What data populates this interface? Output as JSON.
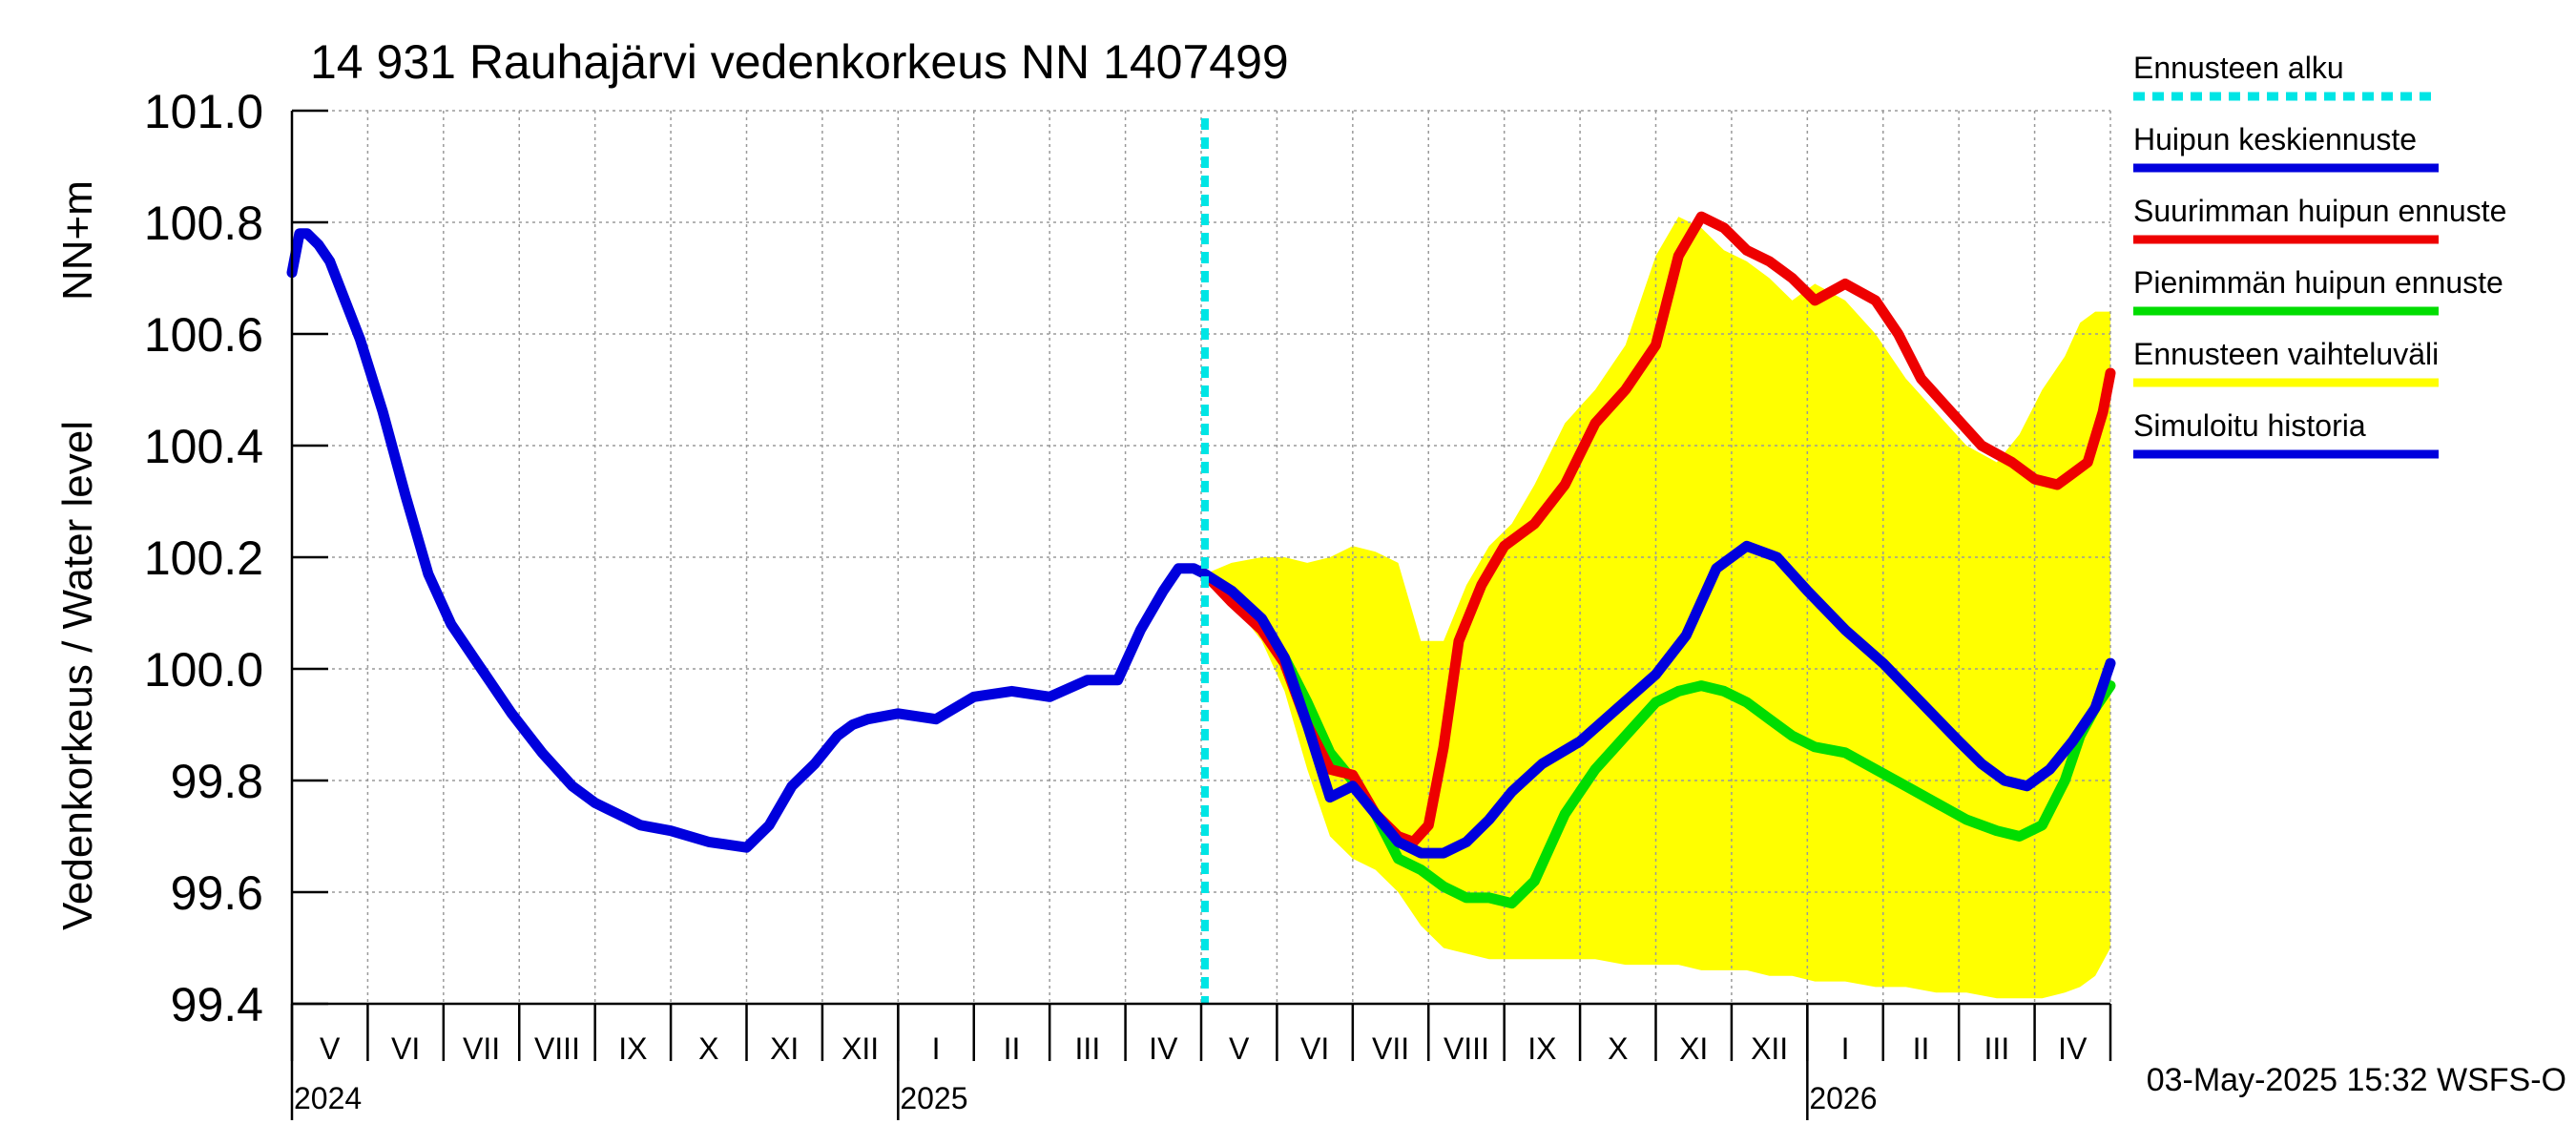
{
  "chart_data": {
    "type": "line",
    "title": "14 931 Rauhajärvi vedenkorkeus NN 1407499",
    "ylabel": "Vedenkorkeus / Water level",
    "yunit": "NN+m",
    "ylim": [
      99.4,
      101.0
    ],
    "ytick_values": [
      99.4,
      99.6,
      99.8,
      100.0,
      100.2,
      100.4,
      100.6,
      100.8,
      101.0
    ],
    "ytick_labels": [
      "99.4",
      "99.6",
      "99.8",
      "100.0",
      "100.2",
      "100.4",
      "100.6",
      "100.8",
      "101.0"
    ],
    "xlim_month_index": [
      0,
      24
    ],
    "month_labels": [
      "V",
      "VI",
      "VII",
      "VIII",
      "IX",
      "X",
      "XI",
      "XII",
      "I",
      "II",
      "III",
      "IV",
      "V",
      "VI",
      "VII",
      "VIII",
      "IX",
      "X",
      "XI",
      "XII",
      "I",
      "II",
      "III",
      "IV"
    ],
    "year_labels": [
      {
        "label": "2024",
        "month_index": 0
      },
      {
        "label": "2025",
        "month_index": 8
      },
      {
        "label": "2026",
        "month_index": 20
      }
    ],
    "forecast_start_month_index": 12.05,
    "footer": "03-May-2025 15:32 WSFS-O",
    "legend": [
      {
        "label": "Ennusteen alku",
        "color": "#00e5e5",
        "style": "dashed"
      },
      {
        "label": "Huipun keskiennuste",
        "color": "#0000dd",
        "style": "solid"
      },
      {
        "label": "Suurimman huipun ennuste",
        "color": "#ee0000",
        "style": "solid"
      },
      {
        "label": "Pienimmän huipun ennuste",
        "color": "#00dd00",
        "style": "solid"
      },
      {
        "label": "Ennusteen vaihteluväli",
        "color": "#ffff00",
        "style": "solid"
      },
      {
        "label": "Simuloitu historia",
        "color": "#0000dd",
        "style": "solid"
      }
    ],
    "series": [
      {
        "name": "Simuloitu historia",
        "color": "#0000dd",
        "x": [
          0,
          0.1,
          0.2,
          0.35,
          0.5,
          0.7,
          0.9,
          1.2,
          1.5,
          1.8,
          2.1,
          2.5,
          2.9,
          3.3,
          3.7,
          4.0,
          4.3,
          4.6,
          5.0,
          5.5,
          6.0,
          6.3,
          6.6,
          6.9,
          7.2,
          7.4,
          7.6,
          8.0,
          8.5,
          9.0,
          9.5,
          10.0,
          10.5,
          10.9,
          11.2,
          11.5,
          11.7,
          11.9,
          12.05
        ],
        "y": [
          100.71,
          100.78,
          100.78,
          100.76,
          100.73,
          100.66,
          100.59,
          100.46,
          100.31,
          100.17,
          100.08,
          100.0,
          99.92,
          99.85,
          99.79,
          99.76,
          99.74,
          99.72,
          99.71,
          99.69,
          99.68,
          99.72,
          99.79,
          99.83,
          99.88,
          99.9,
          99.91,
          99.92,
          99.91,
          99.95,
          99.96,
          99.95,
          99.98,
          99.98,
          100.07,
          100.14,
          100.18,
          100.18,
          100.17
        ]
      },
      {
        "name": "Huipun keskiennuste",
        "color": "#0000dd",
        "x": [
          12.05,
          12.4,
          12.8,
          13.1,
          13.4,
          13.7,
          14.0,
          14.3,
          14.6,
          14.9,
          15.2,
          15.5,
          15.8,
          16.1,
          16.5,
          17.0,
          17.5,
          18.0,
          18.4,
          18.8,
          19.2,
          19.6,
          20.0,
          20.5,
          21.0,
          21.5,
          22.0,
          22.3,
          22.6,
          22.9,
          23.2,
          23.5,
          23.8,
          24.0
        ],
        "y": [
          100.17,
          100.14,
          100.09,
          100.02,
          99.9,
          99.77,
          99.79,
          99.74,
          99.69,
          99.67,
          99.67,
          99.69,
          99.73,
          99.78,
          99.83,
          99.87,
          99.93,
          99.99,
          100.06,
          100.18,
          100.22,
          100.2,
          100.14,
          100.07,
          100.01,
          99.94,
          99.87,
          99.83,
          99.8,
          99.79,
          99.82,
          99.87,
          99.93,
          100.01
        ]
      },
      {
        "name": "Suurimman huipun ennuste",
        "color": "#ee0000",
        "x": [
          12.05,
          12.4,
          12.8,
          13.1,
          13.4,
          13.7,
          14.0,
          14.3,
          14.6,
          14.8,
          15.0,
          15.2,
          15.4,
          15.7,
          16.0,
          16.4,
          16.8,
          17.2,
          17.6,
          18.0,
          18.3,
          18.6,
          18.9,
          19.2,
          19.5,
          19.8,
          20.1,
          20.5,
          20.9,
          21.2,
          21.5,
          21.9,
          22.3,
          22.7,
          23.0,
          23.3,
          23.5,
          23.7,
          23.9,
          24.0
        ],
        "y": [
          100.17,
          100.12,
          100.07,
          100.01,
          99.9,
          99.82,
          99.81,
          99.74,
          99.7,
          99.69,
          99.72,
          99.86,
          100.05,
          100.15,
          100.22,
          100.26,
          100.33,
          100.44,
          100.5,
          100.58,
          100.74,
          100.81,
          100.79,
          100.75,
          100.73,
          100.7,
          100.66,
          100.69,
          100.66,
          100.6,
          100.52,
          100.46,
          100.4,
          100.37,
          100.34,
          100.33,
          100.35,
          100.37,
          100.46,
          100.53
        ]
      },
      {
        "name": "Pienimmän huipun ennuste",
        "color": "#00dd00",
        "x": [
          12.05,
          12.4,
          12.8,
          13.1,
          13.4,
          13.7,
          14.0,
          14.3,
          14.6,
          14.9,
          15.2,
          15.5,
          15.8,
          16.1,
          16.4,
          16.8,
          17.2,
          17.6,
          18.0,
          18.3,
          18.6,
          18.9,
          19.2,
          19.5,
          19.8,
          20.1,
          20.5,
          20.9,
          21.3,
          21.7,
          22.1,
          22.5,
          22.8,
          23.1,
          23.4,
          23.6,
          23.8,
          24.0
        ],
        "y": [
          100.17,
          100.13,
          100.08,
          100.02,
          99.94,
          99.85,
          99.8,
          99.74,
          99.66,
          99.64,
          99.61,
          99.59,
          99.59,
          99.58,
          99.62,
          99.74,
          99.82,
          99.88,
          99.94,
          99.96,
          99.97,
          99.96,
          99.94,
          99.91,
          99.88,
          99.86,
          99.85,
          99.82,
          99.79,
          99.76,
          99.73,
          99.71,
          99.7,
          99.72,
          99.8,
          99.88,
          99.93,
          99.97
        ]
      },
      {
        "name": "Ennusteen vaihteluväli",
        "type": "band",
        "color": "#ffff00",
        "x": [
          12.05,
          12.4,
          12.8,
          13.1,
          13.4,
          13.7,
          14.0,
          14.3,
          14.6,
          14.9,
          15.2,
          15.5,
          15.8,
          16.1,
          16.4,
          16.8,
          17.2,
          17.6,
          18.0,
          18.3,
          18.6,
          18.9,
          19.2,
          19.5,
          19.8,
          20.1,
          20.5,
          20.9,
          21.3,
          21.7,
          22.1,
          22.5,
          22.8,
          23.1,
          23.4,
          23.6,
          23.8,
          24.0
        ],
        "lower": [
          100.17,
          100.12,
          100.05,
          99.96,
          99.82,
          99.7,
          99.66,
          99.64,
          99.6,
          99.54,
          99.5,
          99.49,
          99.48,
          99.48,
          99.48,
          99.48,
          99.48,
          99.47,
          99.47,
          99.47,
          99.46,
          99.46,
          99.46,
          99.45,
          99.45,
          99.44,
          99.44,
          99.43,
          99.43,
          99.42,
          99.42,
          99.41,
          99.41,
          99.41,
          99.42,
          99.43,
          99.45,
          99.5
        ],
        "upper": [
          100.17,
          100.19,
          100.2,
          100.2,
          100.19,
          100.2,
          100.22,
          100.21,
          100.19,
          100.05,
          100.05,
          100.15,
          100.22,
          100.26,
          100.33,
          100.44,
          100.5,
          100.58,
          100.74,
          100.81,
          100.79,
          100.75,
          100.73,
          100.7,
          100.66,
          100.69,
          100.66,
          100.6,
          100.52,
          100.46,
          100.4,
          100.37,
          100.42,
          100.5,
          100.56,
          100.62,
          100.64,
          100.64
        ]
      }
    ]
  }
}
